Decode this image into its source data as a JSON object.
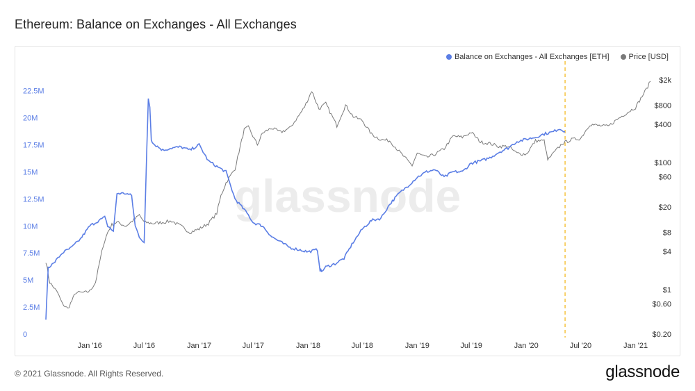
{
  "title": "Ethereum: Balance on Exchanges - All Exchanges",
  "legend": {
    "balance_label": "Balance on Exchanges - All Exchanges [ETH]",
    "price_label": "Price [USD]"
  },
  "watermark": "glassnode",
  "footer": "© 2021 Glassnode. All Rights Reserved.",
  "brand": "glassnode",
  "colors": {
    "balance": "#5b7ee5",
    "price": "#7a7a7a",
    "marker": "#f5c342",
    "axis_left": "#5b7ee5",
    "axis_right": "#333333"
  },
  "chart_data": {
    "type": "line",
    "title": "Ethereum: Balance on Exchanges - All Exchanges",
    "x_ticks": [
      "Jan '16",
      "Jul '16",
      "Jan '17",
      "Jul '17",
      "Jan '18",
      "Jul '18",
      "Jan '19",
      "Jul '19",
      "Jan '20",
      "Jul '20",
      "Jan '21"
    ],
    "x_range": [
      "2015-08-07",
      "2021-02-20"
    ],
    "left_axis": {
      "ticks": [
        "0",
        "2.5M",
        "5M",
        "7.5M",
        "10M",
        "12.5M",
        "15M",
        "17.5M",
        "20M",
        "22.5M"
      ],
      "range": [
        0,
        23500000
      ]
    },
    "right_axis": {
      "scale": "log",
      "ticks": [
        "$0.20",
        "$0.60",
        "$1",
        "$4",
        "$8",
        "$20",
        "$60",
        "$100",
        "$400",
        "$800",
        "$2k"
      ],
      "range": [
        0.2,
        2000
      ]
    },
    "marker_date": "2020-05-10",
    "series": [
      {
        "name": "Balance on Exchanges - All Exchanges [ETH]",
        "axis": "left",
        "x": [
          "2015-08-07",
          "2015-08-15",
          "2015-09-01",
          "2015-10-01",
          "2015-11-01",
          "2015-12-01",
          "2016-01-01",
          "2016-02-01",
          "2016-02-20",
          "2016-03-01",
          "2016-03-20",
          "2016-04-01",
          "2016-05-01",
          "2016-05-20",
          "2016-06-01",
          "2016-06-15",
          "2016-07-01",
          "2016-07-10",
          "2016-07-15",
          "2016-07-20",
          "2016-07-25",
          "2016-08-01",
          "2016-09-01",
          "2016-10-01",
          "2016-11-01",
          "2016-12-01",
          "2017-01-01",
          "2017-02-01",
          "2017-03-01",
          "2017-04-01",
          "2017-05-01",
          "2017-06-01",
          "2017-06-15",
          "2017-07-01",
          "2017-08-01",
          "2017-09-01",
          "2017-10-01",
          "2017-11-01",
          "2017-12-01",
          "2018-01-01",
          "2018-02-01",
          "2018-02-10",
          "2018-02-15",
          "2018-03-01",
          "2018-04-01",
          "2018-05-01",
          "2018-06-01",
          "2018-07-01",
          "2018-08-01",
          "2018-09-01",
          "2018-10-01",
          "2018-11-01",
          "2018-12-01",
          "2019-01-01",
          "2019-02-01",
          "2019-03-01",
          "2019-04-01",
          "2019-05-01",
          "2019-06-01",
          "2019-07-01",
          "2019-08-01",
          "2019-09-01",
          "2019-10-01",
          "2019-11-01",
          "2019-12-01",
          "2020-01-01",
          "2020-02-01",
          "2020-03-01",
          "2020-04-01",
          "2020-04-20",
          "2020-05-10"
        ],
        "values": [
          1400000,
          6200000,
          6500000,
          7500000,
          8000000,
          8800000,
          10000000,
          10500000,
          10800000,
          10000000,
          9500000,
          13000000,
          13000000,
          12800000,
          10000000,
          9000000,
          8500000,
          17200000,
          21800000,
          21000000,
          18000000,
          17600000,
          17000000,
          17200000,
          17300000,
          17000000,
          17500000,
          16000000,
          15500000,
          15000000,
          12500000,
          11500000,
          11000000,
          10300000,
          10000000,
          9000000,
          8500000,
          8000000,
          7800000,
          7600000,
          7800000,
          5900000,
          5800000,
          6200000,
          6500000,
          7000000,
          8500000,
          9700000,
          10500000,
          10700000,
          12000000,
          13000000,
          13700000,
          14500000,
          15000000,
          15200000,
          14500000,
          15000000,
          15000000,
          15800000,
          16000000,
          16300000,
          16800000,
          17200000,
          17800000,
          18000000,
          18200000,
          18500000,
          18700000,
          19000000,
          18700000
        ]
      },
      {
        "name": "Price [USD]",
        "axis": "right",
        "x": [
          "2015-08-07",
          "2015-08-20",
          "2015-09-15",
          "2015-10-01",
          "2015-10-20",
          "2015-11-15",
          "2015-12-15",
          "2016-01-01",
          "2016-01-20",
          "2016-02-15",
          "2016-03-01",
          "2016-03-15",
          "2016-04-01",
          "2016-05-01",
          "2016-06-01",
          "2016-06-15",
          "2016-07-01",
          "2016-08-01",
          "2016-09-01",
          "2016-10-01",
          "2016-11-01",
          "2016-12-01",
          "2017-01-01",
          "2017-02-01",
          "2017-03-01",
          "2017-03-15",
          "2017-04-01",
          "2017-05-01",
          "2017-06-01",
          "2017-06-15",
          "2017-07-15",
          "2017-08-01",
          "2017-09-01",
          "2017-10-01",
          "2017-11-01",
          "2017-12-01",
          "2017-12-20",
          "2018-01-13",
          "2018-02-06",
          "2018-03-01",
          "2018-04-07",
          "2018-05-06",
          "2018-06-01",
          "2018-07-01",
          "2018-08-01",
          "2018-09-01",
          "2018-10-01",
          "2018-11-20",
          "2018-12-15",
          "2019-01-01",
          "2019-02-01",
          "2019-03-01",
          "2019-04-01",
          "2019-05-01",
          "2019-06-01",
          "2019-07-01",
          "2019-08-01",
          "2019-09-01",
          "2019-10-01",
          "2019-11-01",
          "2019-12-01",
          "2020-01-01",
          "2020-02-01",
          "2020-03-01",
          "2020-03-13",
          "2020-04-01",
          "2020-05-01",
          "2020-06-01",
          "2020-07-01",
          "2020-08-01",
          "2020-09-01",
          "2020-10-01",
          "2020-11-01",
          "2020-12-01",
          "2021-01-01",
          "2021-02-01",
          "2021-02-20"
        ],
        "values": [
          2.8,
          1.3,
          0.9,
          0.6,
          0.5,
          0.9,
          0.9,
          0.95,
          1.3,
          5.0,
          8.0,
          10.5,
          11.5,
          10.0,
          13.0,
          15.0,
          11.5,
          11.0,
          11.5,
          12.0,
          10.0,
          8.0,
          9.0,
          11.0,
          16.0,
          30.0,
          48.0,
          80.0,
          330.0,
          360.0,
          190.0,
          290.0,
          350.0,
          300.0,
          350.0,
          550.0,
          750.0,
          1350.0,
          700.0,
          850.0,
          380.0,
          800.0,
          530.0,
          460.0,
          280.0,
          230.0,
          220.0,
          120.0,
          90.0,
          140.0,
          120.0,
          135.0,
          165.0,
          260.0,
          250.0,
          300.0,
          210.0,
          200.0,
          180.0,
          180.0,
          140.0,
          135.0,
          220.0,
          220.0,
          110.0,
          140.0,
          200.0,
          230.0,
          240.0,
          400.0,
          380.0,
          370.0,
          480.0,
          600.0,
          740.0,
          1300.0,
          1900.0
        ]
      }
    ]
  }
}
